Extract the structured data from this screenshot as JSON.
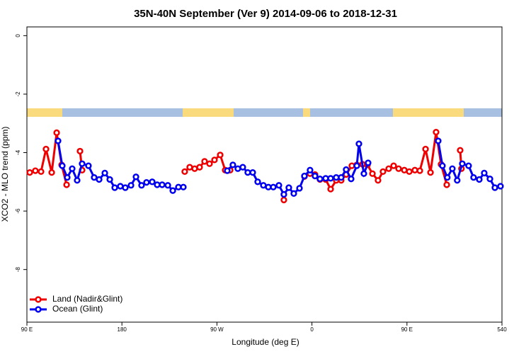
{
  "chart_data": {
    "type": "line",
    "title": "35N-40N September (Ver 9)   2014-09-06 to 2018-12-31",
    "xlabel": "Longitude (deg E)",
    "ylabel": "XCO2 - MLO trend (ppm)",
    "xlim": [
      90,
      540
    ],
    "ylim": [
      -9.8,
      0.3
    ],
    "xticks": [
      {
        "value": 90,
        "label": "90 E"
      },
      180,
      {
        "value": 270,
        "label": "90 W"
      },
      {
        "value": 360,
        "label": "0"
      },
      {
        "value": 450,
        "label": "90 E"
      },
      540
    ],
    "yticks": [
      0,
      -2,
      -4,
      -6,
      -8
    ],
    "legend": "bottom-left",
    "series": [
      {
        "name": "Land (Nadir&Glint)",
        "color": "#ee0000",
        "x": [
          92.7,
          98.0,
          103.4,
          108.1,
          113.5,
          118.2,
          122.9,
          127.6,
          null,
          140.3,
          142.3,
          null,
          239.5,
          244.2,
          248.9,
          253.6,
          258.3,
          263.0,
          267.7,
          273.1,
          277.8,
          282.5,
          null,
          333.4,
          null,
          352.9,
          358.2,
          362.9,
          367.6,
          373.0,
          377.7,
          383.0,
          387.7,
          392.4,
          397.8,
          402.5,
          407.9,
          412.6,
          417.3,
          422.6,
          427.3,
          432.7,
          437.4,
          442.1,
          447.5,
          452.2,
          457.5,
          462.2,
          467.6,
          472.3,
          477.6,
          482.3,
          487.7,
          null,
          500.4,
          501.6
        ],
        "values": [
          -4.68,
          -4.62,
          -4.65,
          -3.88,
          -4.68,
          -3.32,
          -4.42,
          -5.1,
          null,
          -3.95,
          -4.6,
          null,
          -4.65,
          -4.5,
          -4.55,
          -4.5,
          -4.3,
          -4.38,
          -4.25,
          -4.08,
          -4.6,
          -4.6,
          null,
          -5.62,
          null,
          -4.82,
          -4.72,
          -4.75,
          -4.92,
          -4.92,
          -5.25,
          -4.95,
          -4.95,
          -4.75,
          -4.45,
          -4.42,
          -4.4,
          -4.42,
          -4.72,
          -4.95,
          -4.65,
          -4.55,
          -4.45,
          -4.55,
          -4.6,
          -4.65,
          -4.6,
          -4.62,
          -3.88,
          -4.68,
          -3.3,
          -4.4,
          -5.1,
          null,
          -3.92,
          -4.55
        ]
      },
      {
        "name": "Ocean (Glint)",
        "color": "#0000ee",
        "x": [
          119.5,
          123.5,
          128.2,
          132.9,
          137.6,
          142.3,
          148.3,
          153.7,
          158.4,
          163.8,
          168.5,
          173.2,
          178.5,
          183.2,
          188.6,
          193.3,
          198.6,
          203.3,
          208.7,
          213.4,
          218.1,
          223.5,
          228.2,
          233.5,
          238.2,
          null,
          279.8,
          285.1,
          289.8,
          294.5,
          299.2,
          303.9,
          308.6,
          314.0,
          318.7,
          323.4,
          328.7,
          333.4,
          338.1,
          342.8,
          348.2,
          352.9,
          358.2,
          362.9,
          367.6,
          373.0,
          377.7,
          383.0,
          387.7,
          392.4,
          397.1,
          402.5,
          404.5,
          409.2,
          413.2,
          null,
          479.6,
          483.6,
          488.2,
          493.0,
          497.6,
          502.4,
          508.4,
          513.1,
          518.5,
          523.2,
          528.6,
          533.3,
          538.6
        ],
        "values": [
          -3.6,
          -4.45,
          -4.85,
          -4.55,
          -4.95,
          -4.38,
          -4.45,
          -4.85,
          -4.92,
          -4.7,
          -4.92,
          -5.2,
          -5.15,
          -5.2,
          -5.12,
          -4.83,
          -5.12,
          -5.02,
          -5.0,
          -5.1,
          -5.1,
          -5.12,
          -5.3,
          -5.18,
          -5.18,
          null,
          -4.62,
          -4.42,
          -4.55,
          -4.5,
          -4.68,
          -4.68,
          -5.0,
          -5.12,
          -5.18,
          -5.18,
          -5.12,
          -5.43,
          -5.2,
          -5.4,
          -5.22,
          -4.8,
          -4.6,
          -4.8,
          -4.9,
          -4.88,
          -4.88,
          -4.85,
          -4.85,
          -4.58,
          -4.9,
          -4.45,
          -3.7,
          -4.72,
          -4.35,
          null,
          -3.6,
          -4.45,
          -4.85,
          -4.55,
          -4.95,
          -4.38,
          -4.45,
          -4.85,
          -4.92,
          -4.7,
          -4.9,
          -5.2,
          -5.15
        ]
      }
    ]
  }
}
